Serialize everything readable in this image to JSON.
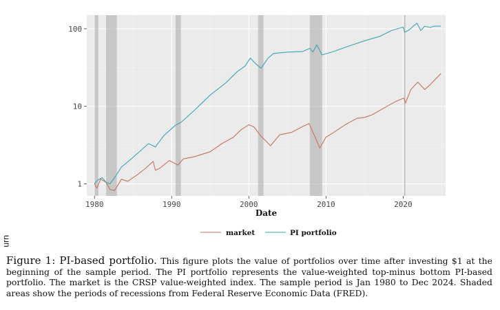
{
  "chart_data": {
    "type": "line",
    "title": "",
    "xlabel": "Date",
    "ylabel": "Cumulative return",
    "yscale": "log",
    "xlim": [
      1979.0,
      2025.5
    ],
    "ylim": [
      0.7,
      150
    ],
    "x_ticks": [
      1980,
      1990,
      2000,
      2010,
      2020
    ],
    "y_ticks": [
      1,
      10,
      100
    ],
    "y_tick_labels": [
      "1",
      "10",
      "100"
    ],
    "legend_position": "bottom",
    "recessions": [
      {
        "start": 1980.0,
        "end": 1980.5
      },
      {
        "start": 1981.5,
        "end": 1982.9
      },
      {
        "start": 1990.5,
        "end": 1991.2
      },
      {
        "start": 2001.2,
        "end": 2001.9
      },
      {
        "start": 2007.9,
        "end": 2009.5
      },
      {
        "start": 2020.1,
        "end": 2020.3
      }
    ],
    "series": [
      {
        "name": "market",
        "color": "#c8705e",
        "x": [
          1980.0,
          1980.3,
          1980.8,
          1981.5,
          1982.0,
          1982.6,
          1983.5,
          1984.3,
          1985.5,
          1986.5,
          1987.6,
          1987.9,
          1988.5,
          1989.7,
          1990.8,
          1991.5,
          1993.0,
          1995.0,
          1996.5,
          1998.0,
          1999.0,
          2000.0,
          2000.7,
          2001.5,
          2002.3,
          2002.8,
          2004.0,
          2005.5,
          2007.0,
          2007.8,
          2008.5,
          2009.2,
          2010.0,
          2011.0,
          2012.5,
          2014.0,
          2015.0,
          2016.0,
          2017.5,
          2019.0,
          2020.1,
          2020.3,
          2021.0,
          2021.9,
          2022.8,
          2023.5,
          2024.0,
          2024.9
        ],
        "values": [
          1.0,
          0.88,
          1.15,
          1.05,
          0.85,
          0.82,
          1.15,
          1.08,
          1.3,
          1.55,
          1.95,
          1.5,
          1.6,
          2.0,
          1.75,
          2.1,
          2.25,
          2.6,
          3.3,
          4.0,
          5.0,
          5.8,
          5.4,
          4.2,
          3.5,
          3.1,
          4.3,
          4.6,
          5.5,
          6.0,
          4.2,
          2.9,
          4.0,
          4.6,
          5.8,
          7.0,
          7.2,
          7.8,
          9.5,
          11.5,
          12.8,
          11.0,
          16.5,
          20.5,
          16.5,
          19.0,
          21.5,
          26.5
        ]
      },
      {
        "name": "PI portfolio",
        "color": "#39a5b5",
        "x": [
          1980.0,
          1980.4,
          1981.0,
          1981.5,
          1982.0,
          1982.6,
          1983.5,
          1985.0,
          1987.0,
          1987.9,
          1989.0,
          1990.5,
          1991.2,
          1993.0,
          1995.0,
          1997.0,
          1998.5,
          1999.5,
          2000.2,
          2000.8,
          2001.6,
          2002.5,
          2003.2,
          2005.0,
          2007.0,
          2007.9,
          2008.3,
          2008.8,
          2009.5,
          2011.0,
          2013.0,
          2015.0,
          2017.0,
          2018.5,
          2020.0,
          2020.2,
          2020.8,
          2021.3,
          2021.8,
          2022.3,
          2022.8,
          2023.5,
          2024.0,
          2024.9
        ],
        "values": [
          1.0,
          1.12,
          1.2,
          1.05,
          1.0,
          1.2,
          1.65,
          2.2,
          3.3,
          3.0,
          4.2,
          5.7,
          6.2,
          9.0,
          14.0,
          20.0,
          28.0,
          33.0,
          42.0,
          36.0,
          31.0,
          42.0,
          48.0,
          50.0,
          51.0,
          56.0,
          50.0,
          62.0,
          46.0,
          51.0,
          60.0,
          70.0,
          80.0,
          95.0,
          105.0,
          90.0,
          97.0,
          108.0,
          118.0,
          95.0,
          108.0,
          104.0,
          108.0,
          108.0
        ]
      }
    ]
  },
  "caption": {
    "lead": "Figure 1: PI-based portfolio.",
    "body": "This figure plots the value of portfolios over time after investing $1 at the beginning of the sample period. The PI portfolio represents the value-weighted top-minus bottom PI-based portfolio. The market is the CRSP value-weighted index. The sample period is Jan 1980 to Dec 2024. Shaded areas show the periods of recessions from Federal Reserve Economic Data (FRED)."
  }
}
